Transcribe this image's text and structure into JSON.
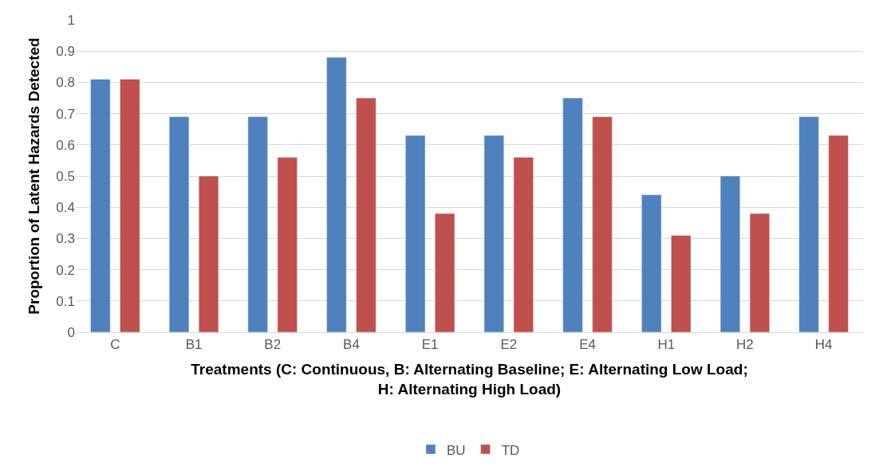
{
  "chart_data": {
    "type": "bar",
    "xlabel": "Treatments (C: Continuous, B: Alternating Baseline; E: Alternating Low Load;\nH: Alternating High Load)",
    "ylabel": "Proportion of Latent Hazards Detected",
    "categories": [
      "C",
      "B1",
      "B2",
      "B4",
      "E1",
      "E2",
      "E4",
      "H1",
      "H2",
      "H4"
    ],
    "series": [
      {
        "name": "BU",
        "color": "#4f81bd",
        "values": [
          0.81,
          0.69,
          0.69,
          0.88,
          0.63,
          0.63,
          0.75,
          0.44,
          0.5,
          0.69
        ]
      },
      {
        "name": "TD",
        "color": "#c0504d",
        "values": [
          0.81,
          0.5,
          0.56,
          0.75,
          0.38,
          0.56,
          0.69,
          0.31,
          0.38,
          0.63
        ]
      }
    ],
    "ylim": [
      0,
      1
    ],
    "yticks": [
      0,
      0.1,
      0.2,
      0.3,
      0.4,
      0.5,
      0.6,
      0.7,
      0.8,
      0.9,
      1
    ],
    "grid": "y",
    "legend": "bottom"
  }
}
